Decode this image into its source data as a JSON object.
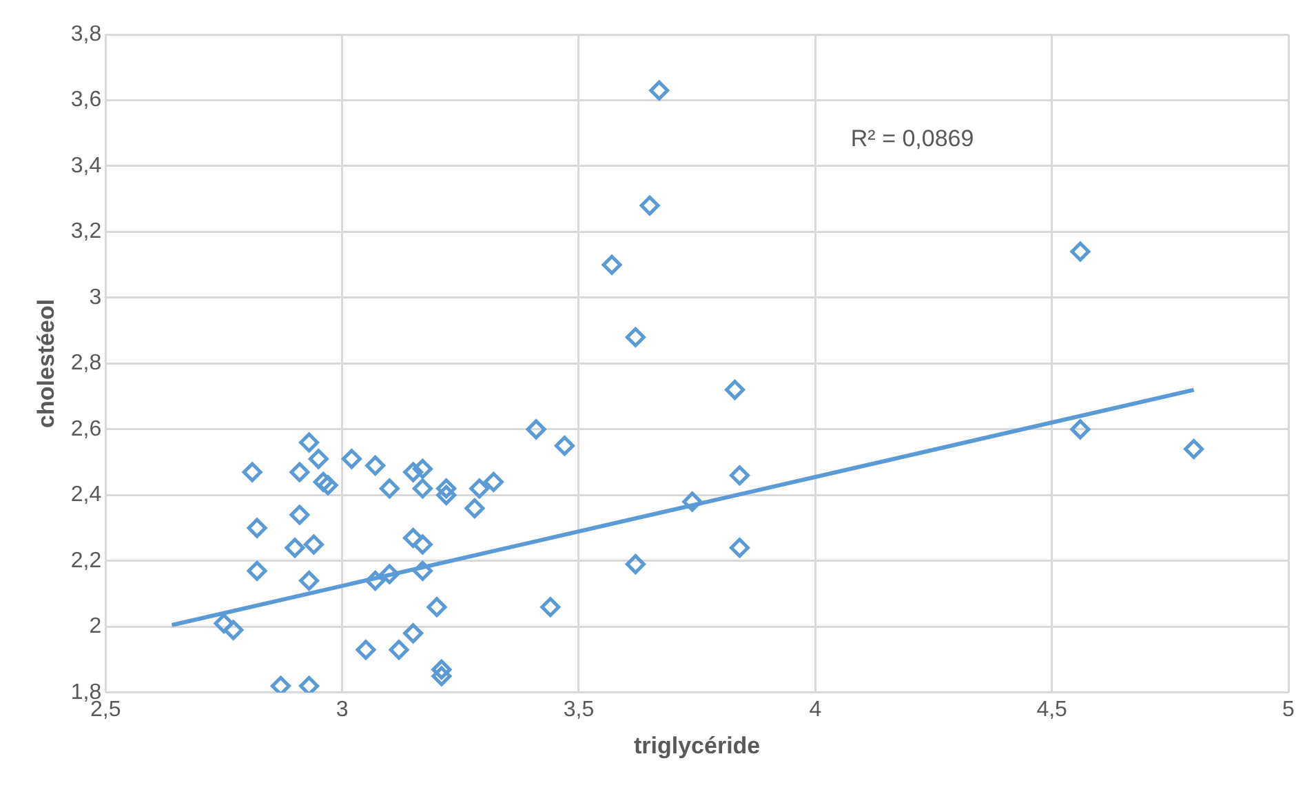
{
  "chart_data": {
    "type": "scatter",
    "xlabel": "triglycéride",
    "ylabel": "cholestéeol",
    "xlim": [
      2.5,
      5
    ],
    "xticks": [
      {
        "value": 2.5,
        "label": "2,5"
      },
      {
        "value": 3,
        "label": "3"
      },
      {
        "value": 3.5,
        "label": "3,5"
      },
      {
        "value": 4,
        "label": "4"
      },
      {
        "value": 4.5,
        "label": "4,5"
      },
      {
        "value": 5,
        "label": "5"
      }
    ],
    "ylim": [
      1.8,
      3.8
    ],
    "yticks": [
      {
        "value": 1.8,
        "label": "1,8"
      },
      {
        "value": 2,
        "label": "2"
      },
      {
        "value": 2.2,
        "label": "2,2"
      },
      {
        "value": 2.4,
        "label": "2,4"
      },
      {
        "value": 2.6,
        "label": "2,6"
      },
      {
        "value": 2.8,
        "label": "2,8"
      },
      {
        "value": 3,
        "label": "3"
      },
      {
        "value": 3.2,
        "label": "3,2"
      },
      {
        "value": 3.4,
        "label": "3,4"
      },
      {
        "value": 3.6,
        "label": "3,6"
      },
      {
        "value": 3.8,
        "label": "3,8"
      }
    ],
    "grid": true,
    "legend": false,
    "marker": "diamond",
    "annotations": [
      "R² = 0,0869"
    ],
    "series": [
      {
        "type": "scatter",
        "color": "#5b9bd5",
        "x": [
          2.81,
          2.82,
          2.82,
          2.75,
          2.77,
          2.87,
          2.93,
          2.93,
          2.95,
          2.91,
          2.91,
          2.9,
          2.94,
          2.93,
          2.96,
          2.97,
          3.02,
          3.07,
          3.1,
          3.15,
          3.17,
          3.17,
          3.22,
          3.22,
          3.28,
          3.29,
          3.32,
          3.15,
          3.17,
          3.1,
          3.07,
          3.2,
          3.15,
          3.12,
          3.05,
          3.21,
          3.21,
          3.17,
          3.41,
          3.47,
          3.44,
          3.67,
          3.65,
          3.57,
          3.62,
          3.62,
          3.83,
          3.84,
          3.74,
          3.84,
          4.56,
          4.56,
          4.8
        ],
        "values": [
          2.47,
          2.3,
          2.17,
          2.01,
          1.99,
          1.82,
          1.82,
          2.56,
          2.51,
          2.47,
          2.34,
          2.24,
          2.25,
          2.14,
          2.44,
          2.43,
          2.51,
          2.49,
          2.42,
          2.47,
          2.48,
          2.42,
          2.42,
          2.4,
          2.36,
          2.42,
          2.44,
          2.27,
          2.25,
          2.16,
          2.14,
          2.06,
          1.98,
          1.93,
          1.93,
          1.87,
          1.85,
          2.17,
          2.6,
          2.55,
          2.06,
          3.63,
          3.28,
          3.1,
          2.88,
          2.19,
          2.72,
          2.46,
          2.38,
          2.24,
          3.14,
          2.6,
          2.54
        ]
      },
      {
        "type": "line",
        "color": "#5b9bd5",
        "marker": "none",
        "x": [
          2.64,
          4.8
        ],
        "values": [
          2.005,
          2.72
        ]
      }
    ]
  }
}
